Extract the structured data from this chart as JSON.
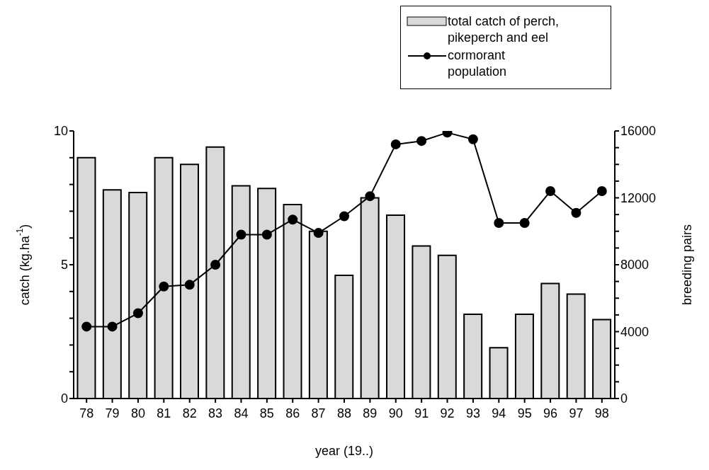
{
  "chart_data": {
    "type": "bar",
    "xlabel": "year (19..)",
    "ylabel": "catch (kg.ha$^{-1}$)",
    "y2label": "breeding pairs",
    "categories": [
      "78",
      "79",
      "80",
      "81",
      "82",
      "83",
      "84",
      "85",
      "86",
      "87",
      "88",
      "89",
      "90",
      "91",
      "92",
      "93",
      "94",
      "95",
      "96",
      "97",
      "98"
    ],
    "series": [
      {
        "name": "total catch of perch, pikeperch and eel",
        "color": "#d9d9d9",
        "values": [
          9.0,
          7.8,
          7.7,
          9.0,
          8.75,
          9.4,
          7.95,
          7.85,
          7.25,
          6.25,
          4.6,
          7.5,
          6.85,
          5.7,
          5.35,
          3.15,
          1.9,
          3.15,
          4.3,
          3.9,
          2.95
        ]
      },
      {
        "name": "cormorant population",
        "type": "line",
        "axis": "y2",
        "color": "#000000",
        "marker": "circle",
        "values": [
          4300,
          4300,
          5100,
          6700,
          6800,
          8000,
          9800,
          9800,
          10700,
          9900,
          10900,
          12100,
          15200,
          15400,
          15900,
          15500,
          10500,
          10500,
          12400,
          11100,
          12400
        ]
      }
    ],
    "ylim": [
      0,
      10
    ],
    "yticks": [
      0,
      {
        "value": 1,
        "label": null
      },
      {
        "value": 2,
        "label": null
      },
      {
        "value": 3,
        "label": null
      },
      {
        "value": 4,
        "label": null
      },
      5,
      {
        "value": 6,
        "label": null
      },
      {
        "value": 7,
        "label": null
      },
      {
        "value": 8,
        "label": null
      },
      {
        "value": 9,
        "label": null
      },
      10
    ],
    "y2lim": [
      0,
      16000
    ],
    "y2ticks": [
      0,
      {
        "value": 1000,
        "label": null
      },
      {
        "value": 2000,
        "label": null
      },
      {
        "value": 3000,
        "label": null
      },
      4000,
      {
        "value": 5000,
        "label": null
      },
      {
        "value": 6000,
        "label": null
      },
      {
        "value": 7000,
        "label": null
      },
      8000,
      {
        "value": 9000,
        "label": null
      },
      {
        "value": 10000,
        "label": null
      },
      {
        "value": 11000,
        "label": null
      },
      12000,
      {
        "value": 13000,
        "label": null
      },
      {
        "value": 14000,
        "label": null
      },
      {
        "value": 15000,
        "label": null
      },
      16000
    ],
    "legend": "top right",
    "grid": false
  }
}
